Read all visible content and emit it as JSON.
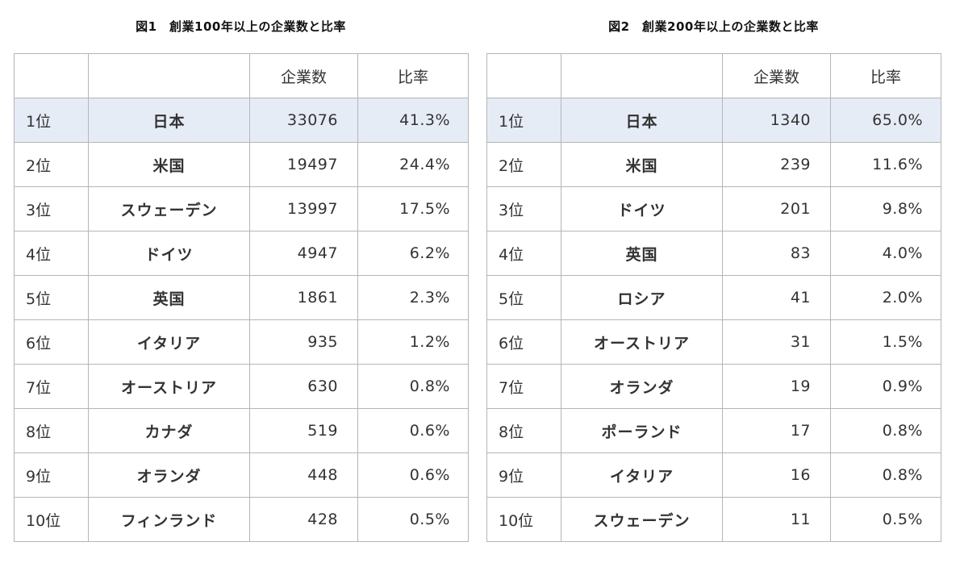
{
  "figures": [
    {
      "title": "図1　創業100年以上の企業数と比率",
      "headers": {
        "rank": "",
        "country": "",
        "count": "企業数",
        "ratio": "比率"
      },
      "rows": [
        {
          "rank": "1位",
          "country": "日本",
          "count": "33076",
          "ratio": "41.3%"
        },
        {
          "rank": "2位",
          "country": "米国",
          "count": "19497",
          "ratio": "24.4%"
        },
        {
          "rank": "3位",
          "country": "スウェーデン",
          "count": "13997",
          "ratio": "17.5%"
        },
        {
          "rank": "4位",
          "country": "ドイツ",
          "count": "4947",
          "ratio": "6.2%"
        },
        {
          "rank": "5位",
          "country": "英国",
          "count": "1861",
          "ratio": "2.3%"
        },
        {
          "rank": "6位",
          "country": "イタリア",
          "count": "935",
          "ratio": "1.2%"
        },
        {
          "rank": "7位",
          "country": "オーストリア",
          "count": "630",
          "ratio": "0.8%"
        },
        {
          "rank": "8位",
          "country": "カナダ",
          "count": "519",
          "ratio": "0.6%"
        },
        {
          "rank": "9位",
          "country": "オランダ",
          "count": "448",
          "ratio": "0.6%"
        },
        {
          "rank": "10位",
          "country": "フィンランド",
          "count": "428",
          "ratio": "0.5%"
        }
      ]
    },
    {
      "title": "図2　創業200年以上の企業数と比率",
      "headers": {
        "rank": "",
        "country": "",
        "count": "企業数",
        "ratio": "比率"
      },
      "rows": [
        {
          "rank": "1位",
          "country": "日本",
          "count": "1340",
          "ratio": "65.0%"
        },
        {
          "rank": "2位",
          "country": "米国",
          "count": "239",
          "ratio": "11.6%"
        },
        {
          "rank": "3位",
          "country": "ドイツ",
          "count": "201",
          "ratio": "9.8%"
        },
        {
          "rank": "4位",
          "country": "英国",
          "count": "83",
          "ratio": "4.0%"
        },
        {
          "rank": "5位",
          "country": "ロシア",
          "count": "41",
          "ratio": "2.0%"
        },
        {
          "rank": "6位",
          "country": "オーストリア",
          "count": "31",
          "ratio": "1.5%"
        },
        {
          "rank": "7位",
          "country": "オランダ",
          "count": "19",
          "ratio": "0.9%"
        },
        {
          "rank": "8位",
          "country": "ポーランド",
          "count": "17",
          "ratio": "0.8%"
        },
        {
          "rank": "9位",
          "country": "イタリア",
          "count": "16",
          "ratio": "0.8%"
        },
        {
          "rank": "10位",
          "country": "スウェーデン",
          "count": "11",
          "ratio": "0.5%"
        }
      ]
    }
  ],
  "colors": {
    "highlight_row": "#e6ecf6",
    "border": "#b5b5b5"
  }
}
